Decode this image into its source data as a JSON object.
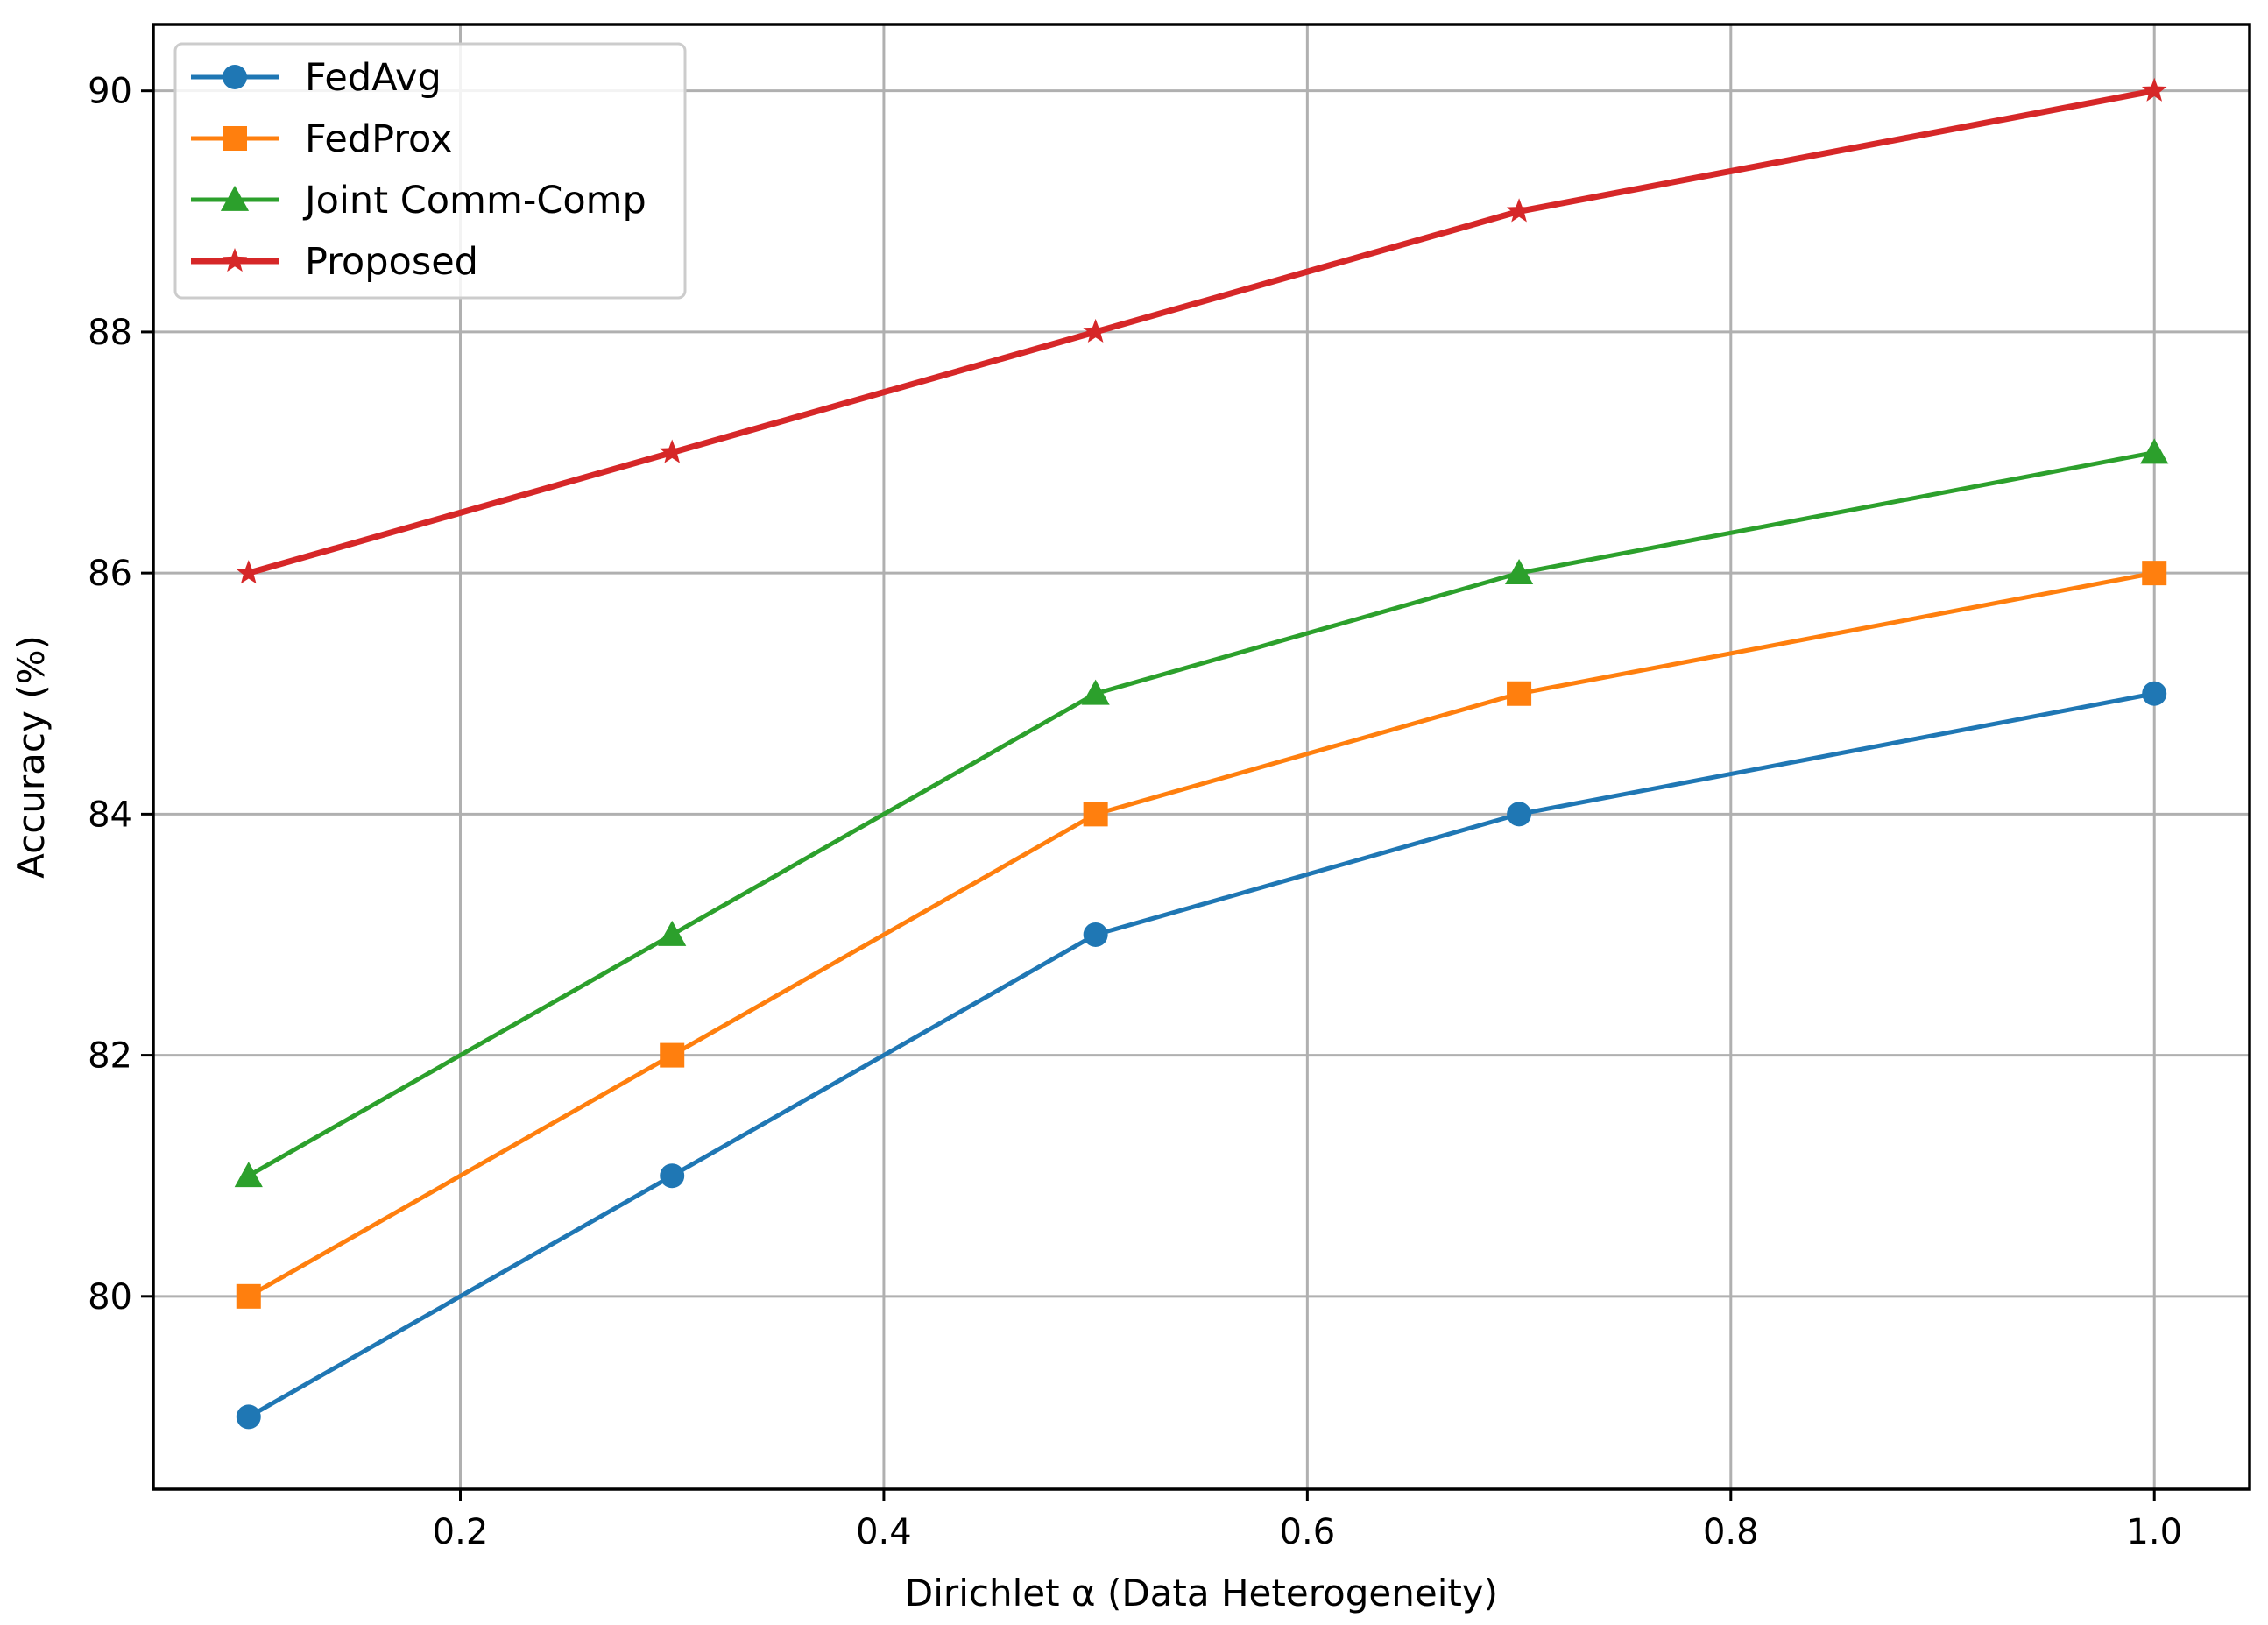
{
  "chart_data": {
    "type": "line",
    "title": "",
    "xlabel": "Dirichlet α (Data Heterogeneity)",
    "ylabel": "Accuracy (%)",
    "x": [
      0.1,
      0.3,
      0.5,
      0.7,
      1.0
    ],
    "xlim": [
      0.055,
      1.045
    ],
    "ylim": [
      78.4,
      90.55
    ],
    "xticks": [
      0.2,
      0.4,
      0.6,
      0.8,
      1.0
    ],
    "xtick_labels": [
      "0.2",
      "0.4",
      "0.6",
      "0.8",
      "1.0"
    ],
    "yticks": [
      80,
      82,
      84,
      86,
      88,
      90
    ],
    "ytick_labels": [
      "80",
      "82",
      "84",
      "86",
      "88",
      "90"
    ],
    "grid": true,
    "legend_position": "top-left",
    "series": [
      {
        "name": "FedAvg",
        "values": [
          79,
          81,
          83,
          84,
          85
        ],
        "color": "#1f77b4",
        "marker": "circle"
      },
      {
        "name": "FedProx",
        "values": [
          80,
          82,
          84,
          85,
          86
        ],
        "color": "#ff7f0e",
        "marker": "square"
      },
      {
        "name": "Joint Comm-Comp",
        "values": [
          81,
          83,
          85,
          86,
          87
        ],
        "color": "#2ca02c",
        "marker": "triangle"
      },
      {
        "name": "Proposed",
        "values": [
          86,
          87,
          88,
          89,
          90
        ],
        "color": "#d62728",
        "marker": "star"
      }
    ]
  }
}
